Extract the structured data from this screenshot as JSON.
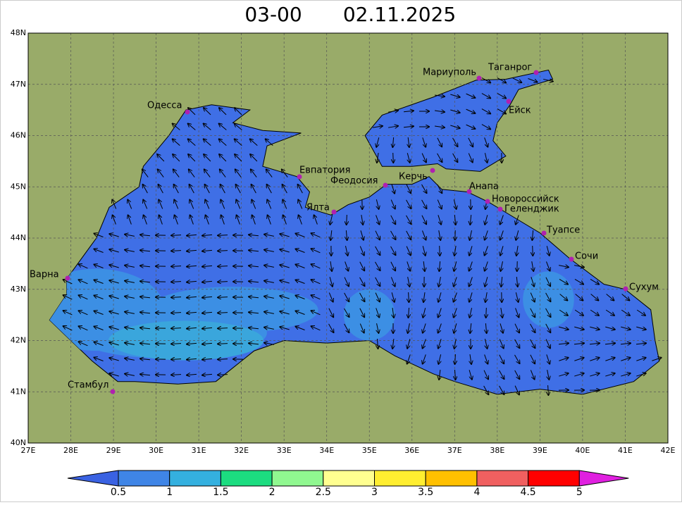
{
  "header": {
    "time": "03-00",
    "date": "02.11.2025"
  },
  "map": {
    "x_labels": [
      "27E",
      "28E",
      "29E",
      "30E",
      "31E",
      "32E",
      "33E",
      "34E",
      "35E",
      "36E",
      "37E",
      "38E",
      "39E",
      "40E",
      "41E",
      "42E"
    ],
    "y_labels": [
      "48N",
      "47N",
      "46N",
      "45N",
      "44N",
      "43N",
      "42N",
      "41N",
      "40N"
    ],
    "cities": [
      "Одесса",
      "Евпатория",
      "Ялта",
      "Феодосия",
      "Керчь",
      "Мариуполь",
      "Таганрог",
      "Ейск",
      "Анапа",
      "Новороссийск",
      "Геленджик",
      "Туапсе",
      "Сочи",
      "Сухум",
      "Варна",
      "Стамбул"
    ]
  },
  "colorbar": {
    "labels": [
      "0.5",
      "1",
      "1.5",
      "2",
      "2.5",
      "3",
      "3.5",
      "4",
      "4.5",
      "5"
    ]
  }
}
